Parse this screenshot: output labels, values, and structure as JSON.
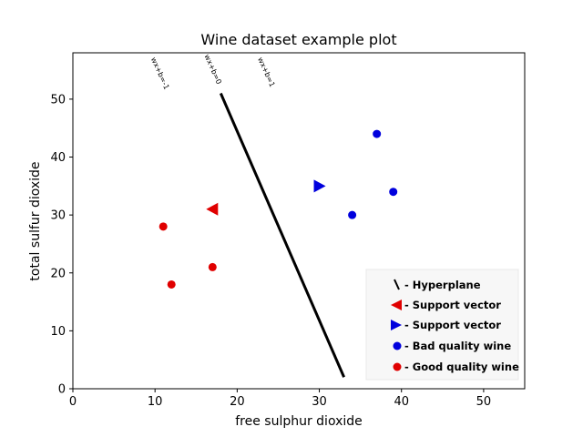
{
  "chart_data": {
    "type": "scatter",
    "title": "Wine dataset example plot",
    "xlabel": "free sulphur dioxide",
    "ylabel": "total sulfur dioxide",
    "xlim": [
      0,
      55
    ],
    "ylim": [
      0,
      58
    ],
    "xticks": [
      0,
      10,
      20,
      30,
      40,
      50
    ],
    "yticks": [
      0,
      10,
      20,
      30,
      40,
      50
    ],
    "grid": false,
    "legend_position": "bottom-right",
    "series": [
      {
        "name": "Good quality wine",
        "marker": "circle",
        "color": "#e00000",
        "x": [
          11,
          12,
          17
        ],
        "y": [
          28,
          18,
          21
        ]
      },
      {
        "name": "Bad quality wine",
        "marker": "circle",
        "color": "#0000dd",
        "x": [
          34,
          37,
          39
        ],
        "y": [
          30,
          44,
          34
        ]
      },
      {
        "name": "Support vector",
        "marker": "triangle-left",
        "color": "#e00000",
        "x": [
          17
        ],
        "y": [
          31
        ]
      },
      {
        "name": "Support vector",
        "marker": "triangle-right",
        "color": "#0000dd",
        "x": [
          30
        ],
        "y": [
          35
        ]
      }
    ],
    "hyperplane": {
      "name": "Hyperplane",
      "color": "#000000",
      "x": [
        18,
        33
      ],
      "y": [
        51,
        2
      ]
    },
    "annotations": [
      {
        "text": "wx+b=-1",
        "x": 9.5,
        "y": 57
      },
      {
        "text": "wx+b=0",
        "x": 16,
        "y": 57.5
      },
      {
        "text": "wx+b=1",
        "x": 22.5,
        "y": 57
      }
    ],
    "legend": [
      {
        "symbol": "\\",
        "label": " - Hyperplane",
        "color": "#000000"
      },
      {
        "symbol": "◀",
        "label": " - Support vector",
        "color": "#e00000"
      },
      {
        "symbol": "▶",
        "label": " - Support vector",
        "color": "#0000dd"
      },
      {
        "symbol": "●",
        "label": " - Bad quality wine",
        "color": "#0000dd"
      },
      {
        "symbol": "●",
        "label": " - Good quality wine",
        "color": "#e00000"
      }
    ]
  }
}
